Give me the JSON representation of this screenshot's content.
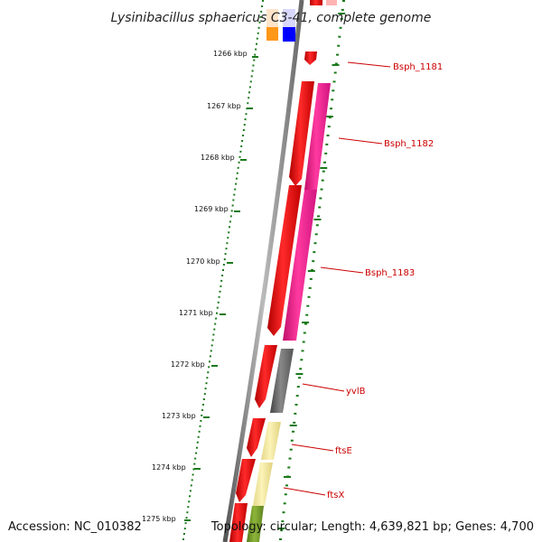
{
  "title": "Lysinibacillus sphaericus C3-41, complete genome",
  "accession": "Accession: NC_010382",
  "topology": "Topology: circular; Length: 4,639,821 bp; Genes: 4,700",
  "ticks": [
    "1266 kbp",
    "1267 kbp",
    "1268 kbp",
    "1269 kbp",
    "1270 kbp",
    "1271 kbp",
    "1272 kbp",
    "1273 kbp",
    "1274 kbp",
    "1275 kbp"
  ],
  "genes": [
    "Bsph_1181",
    "Bsph_1182",
    "Bsph_1183",
    "yvlB",
    "ftsE",
    "ftsX"
  ],
  "colors": {
    "gene_red": "#ff0000",
    "gene_magenta": "#ff1493",
    "gene_grey": "#666666",
    "gene_yellow": "#f0e68c",
    "gene_olive": "#7a9a2a",
    "gene_orange": "#ff8c00",
    "gene_blue": "#0000ff",
    "tick_green": "#1a7a1a",
    "backbone": "#888888",
    "label_red": "#cc0000"
  }
}
